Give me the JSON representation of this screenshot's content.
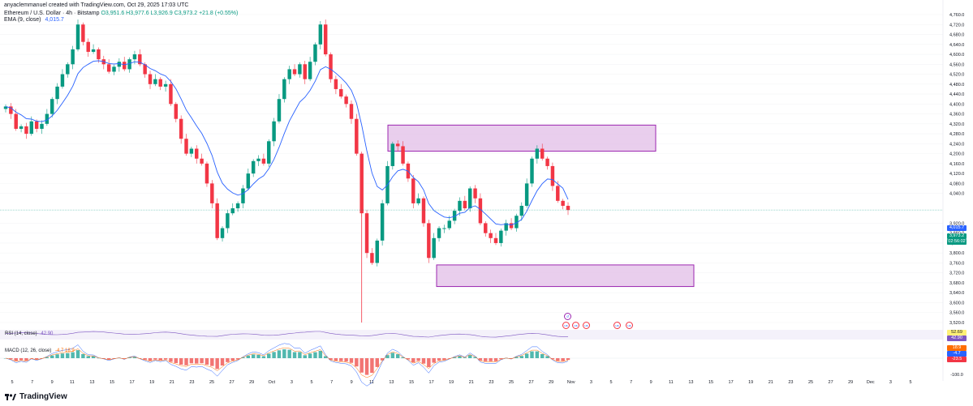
{
  "header": {
    "credit": "anyaclemmanuel created with TradingView.com, Oct 29, 2025 17:03 UTC",
    "symbol": "Ethereum / U.S. Dollar · 4h · Bitstamp",
    "ohlc": "O3,951.6 H3,977.6 L3,926.9 C3,973.2 +21.8 (+0.55%)",
    "ema_label": "EMA (9, close)",
    "ema_value": "4,015.7"
  },
  "indicators": {
    "rsi_label": "RSI (14, close)",
    "rsi_value": "42.90",
    "macd_label": "MACD (12, 26, close)",
    "macd_values": "-4.7  18.9"
  },
  "price_axis": {
    "ticks": [
      "4,760.0",
      "4,720.0",
      "4,680.0",
      "4,640.0",
      "4,600.0",
      "4,560.0",
      "4,520.0",
      "4,480.0",
      "4,440.0",
      "4,400.0",
      "4,360.0",
      "4,320.0",
      "4,280.0",
      "4,240.0",
      "4,200.0",
      "4,160.0",
      "4,120.0",
      "4,080.0",
      "4,040.0",
      "3,920.0",
      "3,880.0",
      "3,840.0",
      "3,800.0",
      "3,760.0",
      "3,720.0",
      "3,680.0",
      "3,640.0",
      "3,600.0",
      "3,560.0",
      "3,520.0"
    ],
    "tags": {
      "ema": "4,015.7",
      "price": "3,973.2",
      "countdown": "02:56:02",
      "rsi_a": "52.69",
      "rsi_b": "42.90",
      "macd_a": "18.9",
      "macd_b": "-4.7",
      "macd_axis": "-23.5",
      "lower_axis": "-100.0"
    }
  },
  "time_axis": [
    "5",
    "7",
    "9",
    "11",
    "13",
    "15",
    "17",
    "19",
    "21",
    "23",
    "25",
    "27",
    "29",
    "Oct",
    "3",
    "5",
    "7",
    "9",
    "11",
    "13",
    "15",
    "17",
    "19",
    "21",
    "23",
    "25",
    "27",
    "29",
    "Nov",
    "3",
    "5",
    "7",
    "9",
    "11",
    "13",
    "15",
    "17",
    "19",
    "21",
    "23",
    "25",
    "27",
    "29",
    "Dec",
    "3",
    "5"
  ],
  "brand": "TradingView",
  "colors": {
    "up": "#089981",
    "down": "#f23645",
    "ema": "#2962ff",
    "zone_fill": "#e1bee7",
    "zone_stroke": "#9c27b0"
  },
  "chart_data": {
    "type": "candlestick",
    "title": "Ethereum / U.S. Dollar · 4h · Bitstamp",
    "ylim": [
      3500,
      4800
    ],
    "closes": [
      4390,
      4360,
      4300,
      4310,
      4280,
      4330,
      4300,
      4320,
      4360,
      4420,
      4470,
      4520,
      4560,
      4620,
      4720,
      4650,
      4610,
      4620,
      4580,
      4560,
      4530,
      4550,
      4570,
      4540,
      4580,
      4600,
      4560,
      4520,
      4480,
      4500,
      4470,
      4480,
      4400,
      4340,
      4260,
      4200,
      4220,
      4180,
      4160,
      4080,
      4000,
      3860,
      3900,
      3960,
      3980,
      4000,
      4060,
      4120,
      4170,
      4180,
      4160,
      4250,
      4330,
      4420,
      4500,
      4540,
      4520,
      4560,
      4500,
      4570,
      4640,
      4720,
      4600,
      4500,
      4460,
      4430,
      4400,
      4340,
      4200,
      3960,
      3800,
      3760,
      3850,
      4000,
      4150,
      4240,
      4230,
      4160,
      4100,
      4000,
      4020,
      3920,
      3780,
      3860,
      3900,
      3900,
      3930,
      3970,
      4010,
      3980,
      4060,
      4020,
      3920,
      3880,
      3860,
      3840,
      3890,
      3920,
      3900,
      3950,
      3990,
      4080,
      4180,
      4220,
      4180,
      4150,
      4070,
      4010,
      3990,
      3973
    ],
    "ema": [
      4390,
      4384,
      4367,
      4356,
      4341,
      4339,
      4331,
      4329,
      4335,
      4352,
      4375,
      4404,
      4435,
      4472,
      4522,
      4547,
      4560,
      4572,
      4574,
      4571,
      4563,
      4561,
      4563,
      4558,
      4563,
      4570,
      4568,
      4558,
      4543,
      4534,
      4521,
      4513,
      4491,
      4461,
      4420,
      4376,
      4345,
      4312,
      4282,
      4241,
      4193,
      4126,
      4081,
      4057,
      4042,
      4033,
      4039,
      4055,
      4078,
      4098,
      4111,
      4139,
      4177,
      4226,
      4281,
      4332,
      4370,
      4408,
      4427,
      4455,
      4492,
      4538,
      4550,
      4540,
      4524,
      4505,
      4484,
      4455,
      4404,
      4315,
      4212,
      4122,
      4068,
      4054,
      4074,
      4107,
      4131,
      4137,
      4130,
      4104,
      4087,
      4054,
      3999,
      3971,
      3957,
      3945,
      3942,
      3947,
      3960,
      3964,
      3983,
      3990,
      3976,
      3957,
      3937,
      3917,
      3914,
      3916,
      3913,
      3921,
      3935,
      3968,
      4011,
      4051,
      4079,
      4098,
      4096,
      4078,
      4061,
      4015.7
    ],
    "supply_zone": [
      4210,
      4315
    ],
    "demand_zone": [
      3665,
      3752
    ]
  }
}
